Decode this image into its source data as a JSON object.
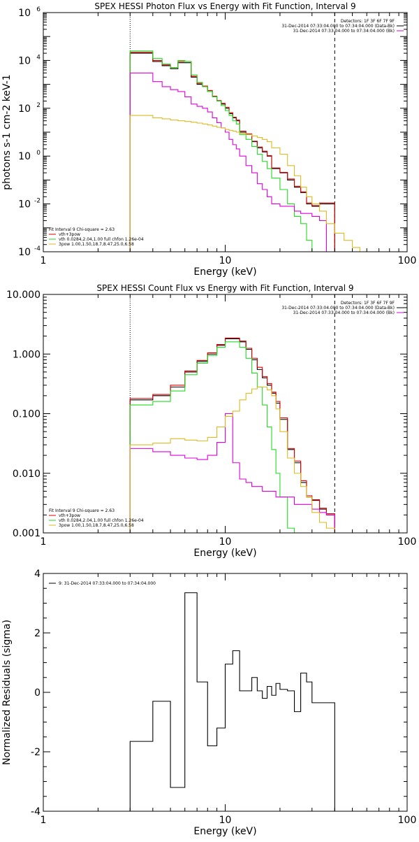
{
  "colors": {
    "black": "#000000",
    "red": "#dd0000",
    "green": "#22dd22",
    "magenta": "#dd00dd",
    "yellow": "#ddbb22",
    "background": "#ffffff"
  },
  "chart_data": [
    {
      "type": "line",
      "title": "SPEX HESSI Photon Flux vs Energy with Fit Function, Interval 9",
      "xlabel": "Energy (keV)",
      "ylabel": "photons s-1 cm-2 keV-1",
      "xscale": "log",
      "yscale": "log",
      "xlim": [
        1,
        100
      ],
      "ylim": [
        0.0001,
        1000000
      ],
      "xtick_labels": [
        "1",
        "10",
        "100"
      ],
      "ytick_labels": [
        {
          "base": "10",
          "exp": "-4",
          "v": 0.0001
        },
        {
          "base": "10",
          "exp": "-2",
          "v": 0.01
        },
        {
          "base": "10",
          "exp": "0",
          "v": 1
        },
        {
          "base": "10",
          "exp": "2",
          "v": 100
        },
        {
          "base": "10",
          "exp": "4",
          "v": 10000
        },
        {
          "base": "10",
          "exp": "6",
          "v": 1000000
        }
      ],
      "vlines": [
        {
          "x": 3,
          "style": "dotted"
        },
        {
          "x": 40,
          "style": "dashed"
        }
      ],
      "legend_right": [
        {
          "text": "Detectors: 1F 3F 6F 7F 9F",
          "color": ""
        },
        {
          "text": "31-Dec-2014 07:33:04.000 to 07:34:04.000 (Data-Bk)",
          "color": "#000000"
        },
        {
          "text": "31-Dec-2014 07:33:04.000 to 07:34:04.000 (Bk)",
          "color": "#dd00dd"
        }
      ],
      "legend_left": [
        {
          "text": "Fit Interval 9   Chi-square = 2.63",
          "color": ""
        },
        {
          "text": "vth+3pow",
          "color": "#dd0000"
        },
        {
          "text": "vth 0.0284,2.04,1.00  full chfon 1.26e-04",
          "color": "#22dd22"
        },
        {
          "text": "3pow 1.00,1.50,18.7,8.47,25.0,6.58",
          "color": "#ddbb22"
        }
      ],
      "edges": [
        3,
        3.5,
        4,
        4.5,
        5,
        5.5,
        6,
        6.5,
        7,
        7.5,
        8,
        8.5,
        9,
        9.5,
        10,
        10.5,
        11,
        11.5,
        12,
        13,
        14,
        15,
        16,
        17,
        18,
        20,
        22,
        24,
        26,
        28,
        30,
        33,
        36,
        40,
        45,
        50,
        55,
        60,
        70
      ],
      "series": [
        {
          "name": "",
          "color": "#000000",
          "values": [
            20000,
            20000,
            9000,
            6000,
            4500,
            8000,
            8000,
            2000,
            1000,
            800,
            500,
            300,
            200,
            150,
            100,
            60,
            40,
            30,
            10,
            8,
            4,
            2.2,
            1.5,
            1,
            0.3,
            0.2,
            0.1,
            0.05,
            0.03,
            0.01,
            0.008,
            0.01,
            0.01
          ]
        },
        {
          "name": "vth+3pow",
          "color": "#dd0000",
          "values": [
            22000,
            22000,
            10000,
            6500,
            5000,
            9000,
            9000,
            2200,
            1100,
            850,
            550,
            320,
            210,
            160,
            110,
            65,
            42,
            32,
            11,
            8.5,
            4.2,
            2.4,
            1.6,
            1.05,
            0.32,
            0.21,
            0.11,
            0.055,
            0.032,
            0.011,
            0.0085,
            0.011,
            0.011
          ]
        },
        {
          "name": "vth",
          "color": "#22dd22",
          "values": [
            25000,
            25000,
            12000,
            7000,
            5000,
            10000,
            9000,
            2500,
            1200,
            800,
            500,
            300,
            200,
            130,
            80,
            50,
            30,
            22,
            8,
            5,
            2.5,
            1.2,
            0.6,
            0.3,
            0.12,
            0.04,
            0.01,
            0.003,
            0.0015,
            0.0003,
            0.0001
          ]
        },
        {
          "name": "background",
          "color": "#dd00dd",
          "values": [
            3000,
            3000,
            1300,
            800,
            600,
            500,
            300,
            150,
            120,
            100,
            70,
            40,
            25,
            15,
            10,
            5,
            3,
            2,
            1,
            0.4,
            0.2,
            0.07,
            0.04,
            0.02,
            0.01,
            0.008,
            0.008,
            0.005,
            0.004,
            0.004,
            0.003,
            0.002
          ]
        },
        {
          "name": "3pow",
          "color": "#ddbb22",
          "values": [
            50,
            50,
            40,
            36,
            32,
            30,
            28,
            26,
            24,
            22,
            20,
            18,
            16,
            15,
            13,
            12,
            11,
            10,
            9,
            8,
            7,
            6,
            5,
            4,
            2.2,
            1.2,
            0.4,
            0.15,
            0.05,
            0.02,
            0.01,
            0.005,
            0.0015,
            0.0006,
            0.0003,
            0.00015,
            0.0001,
            6e-05
          ]
        }
      ]
    },
    {
      "type": "line",
      "title": "SPEX HESSI Count Flux vs Energy with Fit Function, Interval 9",
      "xlabel": "Energy (keV)",
      "ylabel": "",
      "xscale": "log",
      "yscale": "log",
      "xlim": [
        1,
        100
      ],
      "ylim": [
        0.001,
        10
      ],
      "xtick_labels": [
        "1",
        "10",
        "100"
      ],
      "ytick_labels": [
        {
          "base": "0.001",
          "v": 0.001
        },
        {
          "base": "0.010",
          "v": 0.01
        },
        {
          "base": "0.100",
          "v": 0.1
        },
        {
          "base": "1.000",
          "v": 1
        },
        {
          "base": "10.000",
          "v": 10
        }
      ],
      "vlines": [
        {
          "x": 3,
          "style": "dotted"
        },
        {
          "x": 40,
          "style": "dashed"
        }
      ],
      "legend_right": [
        {
          "text": "Detectors: 1F 3F 6F 7F 9F",
          "color": ""
        },
        {
          "text": "31-Dec-2014 07:33:04.000 to 07:34:04.000 (Data-Bk)",
          "color": "#000000"
        },
        {
          "text": "31-Dec-2014 07:33:04.000 to 07:34:04.000 (Bk)",
          "color": "#dd00dd"
        }
      ],
      "legend_left": [
        {
          "text": "Fit Interval 9   Chi-square = 2.63",
          "color": ""
        },
        {
          "text": "vth+3pow",
          "color": "#dd0000"
        },
        {
          "text": "vth 0.0284,2.04,1.00  full chfon 1.26e-04",
          "color": "#22dd22"
        },
        {
          "text": "3pow 1.00,1.50,18.7,8.47,25.0,6.58",
          "color": "#ddbb22"
        }
      ],
      "edges": [
        3,
        4,
        5,
        6,
        7,
        8,
        9,
        10,
        11,
        12,
        13,
        14,
        15,
        16,
        17,
        18,
        19,
        20,
        22,
        24,
        26,
        28,
        30,
        33,
        36,
        40
      ],
      "series": [
        {
          "name": "",
          "color": "#000000",
          "values": [
            0.17,
            0.2,
            0.28,
            0.5,
            0.75,
            1.0,
            1.4,
            1.8,
            1.8,
            1.6,
            1.2,
            0.8,
            0.55,
            0.4,
            0.3,
            0.22,
            0.15,
            0.08,
            0.025,
            0.015,
            0.007,
            0.004,
            0.0035,
            0.0025,
            0.002
          ]
        },
        {
          "name": "vth+3pow",
          "color": "#dd0000",
          "values": [
            0.18,
            0.21,
            0.3,
            0.52,
            0.78,
            1.05,
            1.45,
            1.85,
            1.85,
            1.65,
            1.25,
            0.85,
            0.6,
            0.42,
            0.32,
            0.23,
            0.16,
            0.085,
            0.026,
            0.016,
            0.0075,
            0.0042,
            0.0036,
            0.0026,
            0.0021
          ]
        },
        {
          "name": "vth",
          "color": "#22dd22",
          "values": [
            0.14,
            0.16,
            0.24,
            0.45,
            0.7,
            0.95,
            1.3,
            1.6,
            1.6,
            1.3,
            0.85,
            0.48,
            0.28,
            0.14,
            0.06,
            0.025,
            0.01,
            0.004,
            0.0012,
            0.001
          ]
        },
        {
          "name": "background",
          "color": "#dd00dd",
          "values": [
            0.026,
            0.023,
            0.02,
            0.018,
            0.017,
            0.02,
            0.033,
            0.1,
            0.015,
            0.008,
            0.007,
            0.006,
            0.006,
            0.005,
            0.005,
            0.005,
            0.004,
            0.004,
            0.004,
            0.003,
            0.003,
            0.003,
            0.0025,
            0.0022,
            0.002
          ]
        },
        {
          "name": "3pow",
          "color": "#ddbb22",
          "values": [
            0.03,
            0.032,
            0.038,
            0.036,
            0.035,
            0.04,
            0.06,
            0.09,
            0.11,
            0.17,
            0.22,
            0.26,
            0.28,
            0.28,
            0.25,
            0.2,
            0.12,
            0.05,
            0.018,
            0.01,
            0.006,
            0.004,
            0.0022,
            0.0015,
            0.0012
          ]
        }
      ]
    },
    {
      "type": "line",
      "title": "",
      "xlabel": "Energy (keV)",
      "ylabel": "Normalized Residuals (sigma)",
      "xscale": "log",
      "yscale": "linear",
      "xlim": [
        1,
        100
      ],
      "ylim": [
        -4,
        4
      ],
      "xtick_labels": [
        "1",
        "10",
        "100"
      ],
      "ytick_labels": [
        {
          "base": "-4",
          "v": -4
        },
        {
          "base": "-2",
          "v": -2
        },
        {
          "base": "0",
          "v": 0
        },
        {
          "base": "2",
          "v": 2
        },
        {
          "base": "4",
          "v": 4
        }
      ],
      "vlines": [],
      "legend_right": [],
      "legend_left": [
        {
          "text": "9: 31-Dec-2014 07:33:04.000 to 07:34:04.000",
          "color": "#000000"
        }
      ],
      "edges": [
        3,
        4,
        5,
        6,
        7,
        8,
        9,
        10,
        11,
        12,
        13,
        14,
        15,
        16,
        17,
        18,
        19,
        20,
        22,
        24,
        26,
        28,
        30,
        33,
        36,
        40
      ],
      "series": [
        {
          "name": "9: 31-Dec-2014 07:33:04.000 to 07:34:04.000",
          "color": "#000000",
          "values": [
            -1.65,
            -0.3,
            -3.2,
            3.35,
            0.35,
            -1.8,
            -1.2,
            0.95,
            1.4,
            0.05,
            0.05,
            0.5,
            0.05,
            -0.2,
            0.2,
            -0.1,
            0.3,
            0.1,
            0.05,
            -0.65,
            0.65,
            0.35,
            -0.35,
            -0.35,
            -0.35
          ]
        }
      ]
    }
  ]
}
